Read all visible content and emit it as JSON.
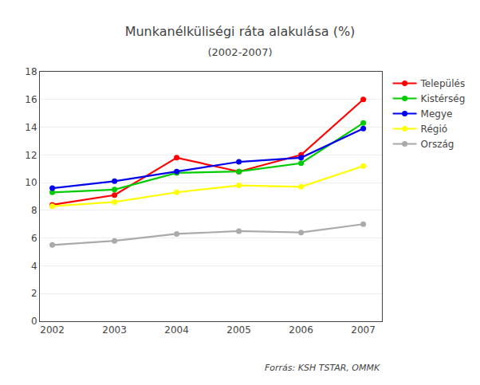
{
  "chart_data": {
    "type": "line",
    "title": "Munkanélküliségi ráta alakulása (%)",
    "subtitle": "(2002-2007)",
    "annotations": [
      "Forrás: KSH TSTAR, OMMK"
    ],
    "x": [
      2002,
      2003,
      2004,
      2005,
      2006,
      2007
    ],
    "series": [
      {
        "name": "Település",
        "color": "#ff0000",
        "values": [
          8.4,
          9.1,
          11.8,
          10.8,
          12.0,
          16.0
        ]
      },
      {
        "name": "Kistérség",
        "color": "#00cc00",
        "values": [
          9.3,
          9.5,
          10.7,
          10.8,
          11.4,
          14.3
        ]
      },
      {
        "name": "Megye",
        "color": "#0000ee",
        "values": [
          9.6,
          10.1,
          10.8,
          11.5,
          11.8,
          13.9
        ]
      },
      {
        "name": "Régió",
        "color": "#ffff00",
        "values": [
          8.3,
          8.6,
          9.3,
          9.8,
          9.7,
          11.2
        ]
      },
      {
        "name": "Ország",
        "color": "#aaaaaa",
        "values": [
          5.5,
          5.8,
          6.3,
          6.5,
          6.4,
          7.0
        ]
      }
    ],
    "xlim": [
      2001.8,
      2007.3
    ],
    "xticks": [
      2002,
      2003,
      2004,
      2005,
      2006,
      2007
    ],
    "ylim": [
      0,
      18
    ],
    "yticks": [
      0,
      2,
      4,
      6,
      8,
      10,
      12,
      14,
      16,
      18
    ],
    "grid": "y",
    "legend": "right",
    "marker": "circle",
    "line_style": "solid"
  }
}
